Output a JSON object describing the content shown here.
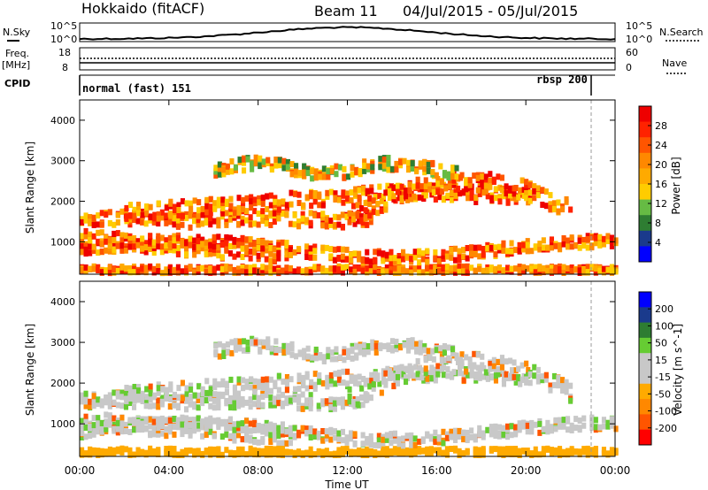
{
  "header": {
    "station": "Hokkaido (fitACF)",
    "beam": "Beam 11",
    "date_range": "04/Jul/2015 - 05/Jul/2015"
  },
  "panels": {
    "nsky": {
      "left_label": "N.Sky",
      "left_ticks": [
        "10^5",
        "10^0"
      ],
      "right_ticks": [
        "10^5",
        "10^0"
      ],
      "right_label": "N.Search"
    },
    "freq": {
      "left_label": "Freq.",
      "unit": "[MHz]",
      "left_ticks": [
        "18",
        "8"
      ],
      "right_ticks": [
        "60",
        "0"
      ],
      "right_label": "Nave"
    },
    "cpid": {
      "label": "CPID",
      "mode1": "normal (fast) 151",
      "mode2": "rbsp 200"
    }
  },
  "colors": {
    "power_scale": [
      "#0000ff",
      "#1a3a8c",
      "#2e7d32",
      "#66bb44",
      "#ffcc00",
      "#ffaa00",
      "#ff8800",
      "#ff5500",
      "#ff2200",
      "#ee0000"
    ],
    "velocity_scale": [
      "#ff0000",
      "#ff5500",
      "#ff8800",
      "#ffaa00",
      "#c8c8c8",
      "#c8c8c8",
      "#66cc33",
      "#2e7d32",
      "#1a3a8c",
      "#0000ff"
    ],
    "ground_scatter": "#c0c0c0"
  },
  "chart_data": [
    {
      "type": "heatmap",
      "name": "power",
      "ylabel": "Slant Range [km]",
      "ylim": [
        200,
        4500
      ],
      "yticks": [
        "1000",
        "2000",
        "3000",
        "4000"
      ],
      "xlabel": "Time UT",
      "xticks": [
        "00:00",
        "04:00",
        "08:00",
        "12:00",
        "16:00",
        "20:00",
        "00:00"
      ],
      "colorbar": {
        "label": "Power [dB]",
        "ticks": [
          "4",
          "8",
          "12",
          "16",
          "20",
          "24",
          "28"
        ]
      }
    },
    {
      "type": "heatmap",
      "name": "velocity",
      "ylabel": "Slant Range [km]",
      "ylim": [
        200,
        4500
      ],
      "yticks": [
        "1000",
        "2000",
        "3000",
        "4000"
      ],
      "xlabel": "Time UT",
      "xticks": [
        "00:00",
        "04:00",
        "08:00",
        "12:00",
        "16:00",
        "20:00",
        "00:00"
      ],
      "colorbar": {
        "label": "Velocity [m s^-1]",
        "ticks": [
          "200",
          "100",
          "50",
          "15",
          "-15",
          "-50",
          "-100",
          "-200"
        ]
      }
    }
  ]
}
